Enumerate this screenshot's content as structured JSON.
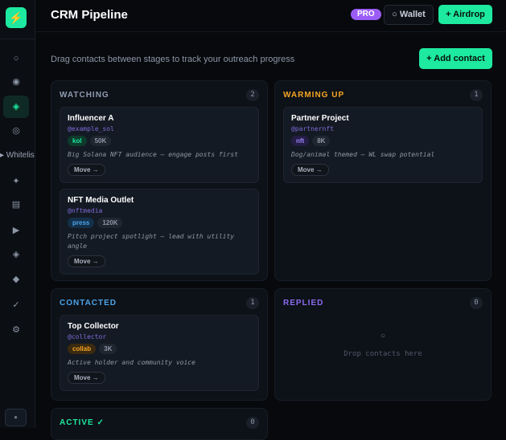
{
  "app": {
    "logo_icon": "lightning-icon",
    "title": "CRM Pipeline",
    "pro_badge": "PRO",
    "wallet_label": "○ Wallet",
    "airdrop_label": "+ Airdrop"
  },
  "sidebar": {
    "items": [
      {
        "icon": "circle-icon",
        "glyph": "○"
      },
      {
        "icon": "dot-circle-icon",
        "glyph": "◉"
      },
      {
        "icon": "diamond-icon",
        "glyph": "◈",
        "active": true
      },
      {
        "icon": "ring-icon",
        "glyph": "◎"
      },
      {
        "icon": "sparkle-icon",
        "glyph": "✦"
      },
      {
        "icon": "list-icon",
        "glyph": "▤"
      },
      {
        "icon": "play-icon",
        "glyph": "▶"
      },
      {
        "icon": "diamond-outline-icon",
        "glyph": "◈"
      },
      {
        "icon": "diamond-solid-icon",
        "glyph": "◆"
      },
      {
        "icon": "check-icon",
        "glyph": "✓"
      },
      {
        "icon": "gear-icon",
        "glyph": "⚙"
      }
    ],
    "flyout_label": "▸ Whitelis",
    "bottom_glyph": "●"
  },
  "main": {
    "subtitle": "Drag contacts between stages to track your outreach progress",
    "add_contact_label": "+ Add contact"
  },
  "colors": {
    "accent": "#1de9a0",
    "watching": "#8e9bb0",
    "warming": "#f5a524",
    "contacted": "#4da3e8",
    "replied": "#8b6cf0",
    "active": "#1de9a0"
  },
  "stages": [
    {
      "title": "WATCHING",
      "count": "2",
      "cards": [
        {
          "name": "Influencer A",
          "handle": "@example_sol",
          "tag": "kol",
          "followers": "50K",
          "note": "Big Solana NFT audience — engage posts first",
          "move": "Move →"
        },
        {
          "name": "NFT Media Outlet",
          "handle": "@nftmedia",
          "tag": "press",
          "followers": "120K",
          "note": "Pitch project spotlight — lead with utility angle",
          "move": "Move →"
        }
      ]
    },
    {
      "title": "WARMING UP",
      "count": "1",
      "cards": [
        {
          "name": "Partner Project",
          "handle": "@partnernft",
          "tag": "nft",
          "followers": "8K",
          "note": "Dog/animal themed — WL swap potential",
          "move": "Move →"
        }
      ]
    },
    {
      "title": "CONTACTED",
      "count": "1",
      "cards": [
        {
          "name": "Top Collector",
          "handle": "@collector",
          "tag": "collab",
          "followers": "3K",
          "note": "Active holder and community voice",
          "move": "Move →"
        }
      ]
    },
    {
      "title": "REPLIED",
      "count": "0",
      "empty_icon": "○",
      "empty_text": "Drop contacts here",
      "cards": []
    },
    {
      "title": "ACTIVE ✓",
      "count": "0",
      "cards": []
    }
  ]
}
